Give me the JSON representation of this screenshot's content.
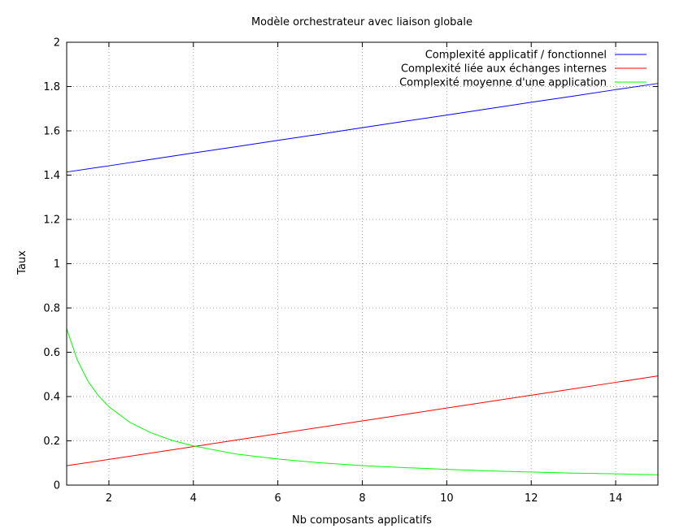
{
  "chart_data": {
    "type": "line",
    "title": "Modèle orchestrateur avec liaison globale",
    "xlabel": "Nb composants applicatifs",
    "ylabel": "Taux",
    "xlim": [
      1,
      15
    ],
    "ylim": [
      0,
      2
    ],
    "xticks": [
      2,
      4,
      6,
      8,
      10,
      12,
      14
    ],
    "yticks": [
      0,
      0.2,
      0.4,
      0.6,
      0.8,
      1,
      1.2,
      1.4,
      1.6,
      1.8,
      2
    ],
    "ytick_labels": [
      "0",
      "0.2",
      "0.4",
      "0.6",
      "0.8",
      "1",
      "1.2",
      "1.4",
      "1.6",
      "1.8",
      "2"
    ],
    "grid": true,
    "legend_position": "top-right",
    "series": [
      {
        "name": "Complexité applicatif / fonctionnel",
        "color": "#0000ff",
        "x": [
          1,
          2,
          3,
          4,
          5,
          6,
          7,
          8,
          9,
          10,
          11,
          12,
          13,
          14,
          15
        ],
        "y": [
          1.414,
          1.442,
          1.471,
          1.5,
          1.528,
          1.557,
          1.585,
          1.614,
          1.643,
          1.671,
          1.7,
          1.729,
          1.757,
          1.786,
          1.814
        ]
      },
      {
        "name": "Complexité liée aux échanges internes",
        "color": "#ff0000",
        "x": [
          1,
          2,
          3,
          4,
          5,
          6,
          7,
          8,
          9,
          10,
          11,
          12,
          13,
          14,
          15
        ],
        "y": [
          0.0875,
          0.116,
          0.145,
          0.174,
          0.203,
          0.232,
          0.261,
          0.29,
          0.319,
          0.348,
          0.377,
          0.406,
          0.435,
          0.464,
          0.493
        ]
      },
      {
        "name": "Complexité moyenne d'une application",
        "color": "#00ff00",
        "x": [
          1,
          1.25,
          1.5,
          1.75,
          2,
          2.5,
          3,
          3.5,
          4,
          5,
          6,
          7,
          8,
          9,
          10,
          11,
          12,
          13,
          14,
          15
        ],
        "y": [
          0.707,
          0.566,
          0.471,
          0.404,
          0.354,
          0.283,
          0.236,
          0.202,
          0.177,
          0.141,
          0.118,
          0.101,
          0.088,
          0.079,
          0.071,
          0.064,
          0.059,
          0.054,
          0.051,
          0.047
        ]
      }
    ]
  }
}
